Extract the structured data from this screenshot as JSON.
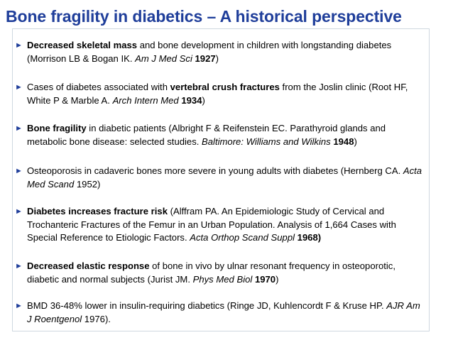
{
  "slide": {
    "title": "Bone fragility in diabetics – A historical perspective",
    "bullet_glyph": "►"
  },
  "bullets": [
    {
      "runs": [
        {
          "text": "Decreased skeletal mass",
          "style": "b"
        },
        {
          "text": " and bone development in children with longstanding diabetes (Morrison LB & Bogan IK. ",
          "style": ""
        },
        {
          "text": "Am J Med Sci",
          "style": "i"
        },
        {
          "text": " ",
          "style": ""
        },
        {
          "text": "1927",
          "style": "b"
        },
        {
          "text": ")",
          "style": ""
        }
      ]
    },
    {
      "runs": [
        {
          "text": "Cases of diabetes associated with ",
          "style": ""
        },
        {
          "text": "vertebral crush fractures",
          "style": "b"
        },
        {
          "text": " from the Joslin clinic (Root HF, White P & Marble A. ",
          "style": ""
        },
        {
          "text": "Arch Intern Med",
          "style": "i"
        },
        {
          "text": " ",
          "style": ""
        },
        {
          "text": "1934",
          "style": "b"
        },
        {
          "text": ")",
          "style": ""
        }
      ]
    },
    {
      "runs": [
        {
          "text": "Bone fragility",
          "style": "b"
        },
        {
          "text": " in diabetic patients (Albright F & Reifenstein EC. Parathyroid glands and metabolic bone disease: selected studies. ",
          "style": ""
        },
        {
          "text": "Baltimore: Williams and Wilkins",
          "style": "i"
        },
        {
          "text": " ",
          "style": ""
        },
        {
          "text": "1948",
          "style": "b"
        },
        {
          "text": ")",
          "style": ""
        }
      ]
    },
    {
      "runs": [
        {
          "text": "Osteoporosis in cadaveric bones more severe in young adults with diabetes (Hernberg CA. ",
          "style": ""
        },
        {
          "text": "Acta Med Scand",
          "style": "i"
        },
        {
          "text": " 1952)",
          "style": ""
        }
      ]
    },
    {
      "runs": [
        {
          "text": "Diabetes increases fracture risk",
          "style": "b"
        },
        {
          "text": " (Alffram PA. An Epidemiologic Study of Cervical and Trochanteric Fractures of the Femur in an Urban Population. Analysis of 1,664 Cases with Special Reference to Etiologic Factors. ",
          "style": ""
        },
        {
          "text": "Acta Orthop Scand Suppl",
          "style": "i"
        },
        {
          "text": " ",
          "style": ""
        },
        {
          "text": "1968)",
          "style": "b"
        }
      ]
    },
    {
      "runs": [
        {
          "text": "Decreased elastic response",
          "style": "b"
        },
        {
          "text": " of bone in vivo by ulnar resonant frequency in osteoporotic, diabetic and normal subjects (Jurist JM. ",
          "style": ""
        },
        {
          "text": "Phys Med Biol",
          "style": "i"
        },
        {
          "text": " ",
          "style": ""
        },
        {
          "text": "1970",
          "style": "b"
        },
        {
          "text": ")",
          "style": ""
        }
      ]
    },
    {
      "runs": [
        {
          "text": "BMD 36-48% lower in insulin-requiring diabetics (Ringe JD, Kuhlencordt F & Kruse HP. ",
          "style": ""
        },
        {
          "text": "AJR Am J Roentgenol",
          "style": "i"
        },
        {
          "text": " 1976).",
          "style": ""
        }
      ]
    }
  ]
}
